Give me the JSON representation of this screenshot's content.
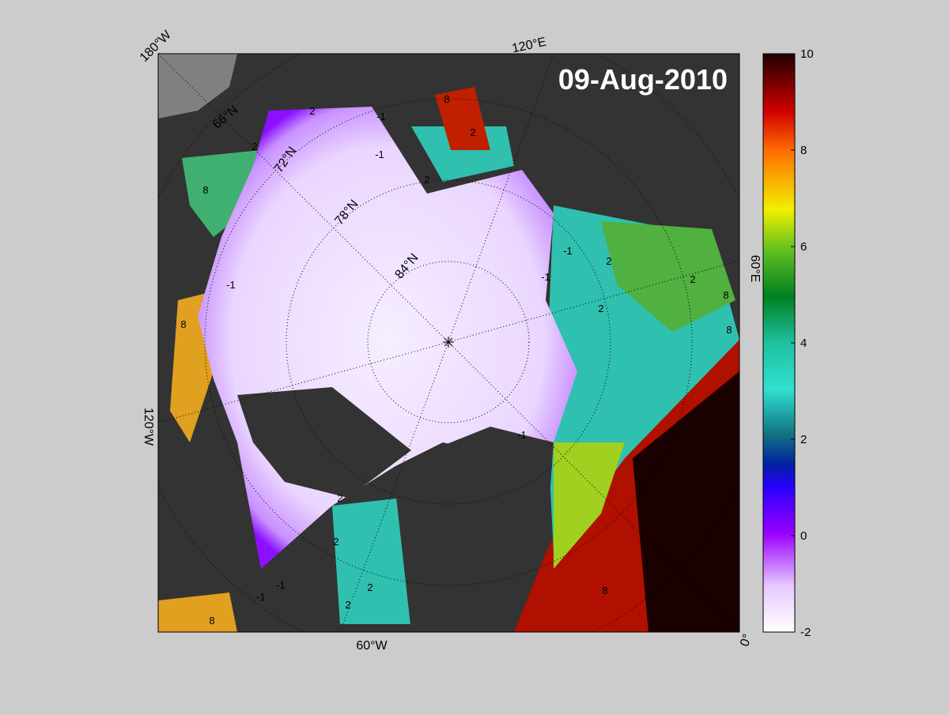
{
  "map": {
    "date": "09-Aug-2010",
    "longitude_labels": [
      "180°W",
      "120°E",
      "60°E",
      "0°",
      "60°W",
      "120°W"
    ],
    "latitude_labels": [
      "66°N",
      "72°N",
      "78°N",
      "84°N"
    ],
    "contour_labels": [
      "2",
      "-1",
      "2",
      "-1",
      "2",
      "8",
      "8",
      "2",
      "-1",
      "8",
      "-1",
      "2",
      "-1",
      "2",
      "2",
      "8",
      "8",
      "-1",
      "2",
      "2",
      "2",
      "2",
      "8",
      "-1",
      "-1",
      "8"
    ]
  },
  "colorbar": {
    "range": [
      -2,
      10
    ],
    "ticks": [
      -2,
      0,
      2,
      4,
      6,
      8,
      10
    ]
  }
}
